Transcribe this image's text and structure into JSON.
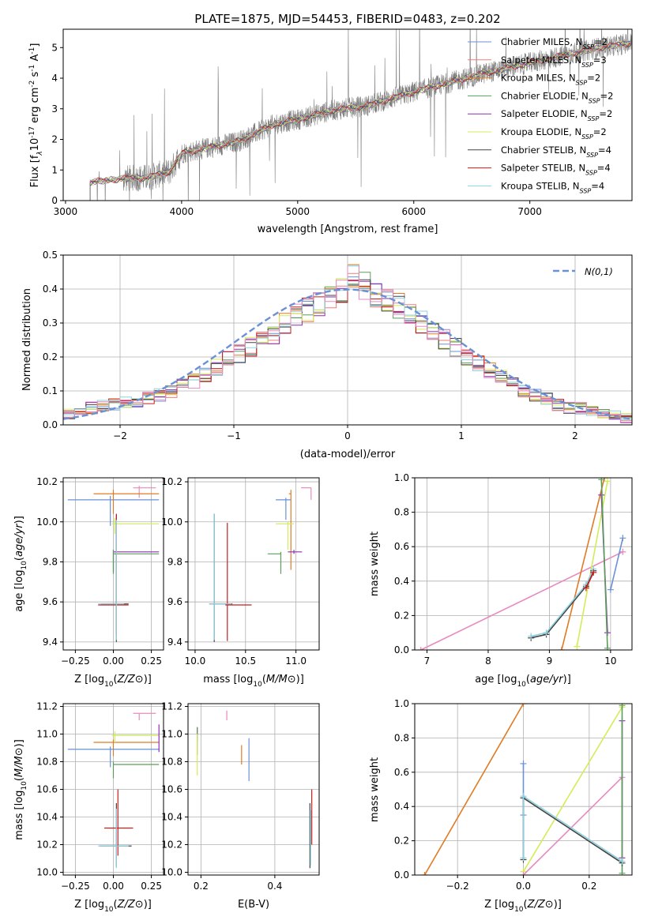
{
  "title": "PLATE=1875, MJD=54453, FIBERID=0483, z=0.202",
  "colors": {
    "chabrier_miles": "#6a91d6",
    "salpeter_miles": "#f07d7a",
    "kroupa_miles": "#e07b25",
    "chabrier_elodie": "#5a9e5a",
    "salpeter_elodie": "#8e2fb0",
    "kroupa_elodie": "#d4ec57",
    "chabrier_stelib": "#444444",
    "salpeter_stelib": "#c81d1d",
    "kroupa_stelib": "#8fd0e0",
    "pink": "#e88abf",
    "data": "#808080",
    "normal_curve": "#6a91d6"
  },
  "chart_data": [
    {
      "id": "spectrum",
      "type": "line",
      "xlabel": "wavelength [Angstrom, rest frame]",
      "ylabel_parts": [
        "Flux [f",
        "λ",
        "10",
        "-17",
        " erg cm",
        "-2",
        " s",
        "-1",
        " A",
        "-1",
        "]"
      ],
      "xlim": [
        2980,
        7880
      ],
      "ylim": [
        0,
        5.6
      ],
      "xticks": [
        3000,
        4000,
        5000,
        6000,
        7000
      ],
      "yticks": [
        0,
        1,
        2,
        3,
        4,
        5
      ],
      "series_data": {
        "name": "data",
        "x_start": 3210,
        "x_end": 7880
      },
      "model_trend": {
        "x": [
          3210,
          3500,
          3700,
          3900,
          4000,
          4200,
          4500,
          4800,
          5000,
          5300,
          5600,
          6000,
          6300,
          6600,
          7000,
          7300,
          7600,
          7880
        ],
        "y": [
          0.6,
          0.72,
          0.75,
          0.95,
          1.55,
          1.7,
          1.95,
          2.5,
          2.65,
          2.95,
          3.1,
          3.55,
          3.85,
          4.15,
          4.5,
          4.75,
          5.0,
          5.15
        ]
      },
      "legend": [
        {
          "label": "Chabrier MILES, N",
          "sub": "SSP",
          "eq": "=2",
          "color": "#6a91d6"
        },
        {
          "label": "Salpeter MILES, N",
          "sub": "SSP",
          "eq": "=3",
          "color": "#f07d7a"
        },
        {
          "label": "Kroupa MILES, N",
          "sub": "SSP",
          "eq": "=2",
          "color": "#e07b25"
        },
        {
          "label": "Chabrier ELODIE, N",
          "sub": "SSP",
          "eq": "=2",
          "color": "#5a9e5a"
        },
        {
          "label": "Salpeter ELODIE, N",
          "sub": "SSP",
          "eq": "=2",
          "color": "#8e2fb0"
        },
        {
          "label": "Kroupa ELODIE, N",
          "sub": "SSP",
          "eq": "=2",
          "color": "#d4ec57"
        },
        {
          "label": "Chabrier STELIB, N",
          "sub": "SSP",
          "eq": "=4",
          "color": "#444444"
        },
        {
          "label": "Salpeter STELIB, N",
          "sub": "SSP",
          "eq": "=4",
          "color": "#c81d1d"
        },
        {
          "label": "Kroupa STELIB, N",
          "sub": "SSP",
          "eq": "=4",
          "color": "#8fd0e0"
        }
      ],
      "legend_position": "top-right"
    },
    {
      "id": "residuals",
      "type": "histogram",
      "xlabel": "(data-model)/error",
      "ylabel": "Normed distribution",
      "xlim": [
        -2.5,
        2.5
      ],
      "ylim": [
        0,
        0.5
      ],
      "xticks": [
        -2,
        -1,
        0,
        1,
        2
      ],
      "xtick_labels": [
        "−2",
        "−1",
        "0",
        "1",
        "2"
      ],
      "yticks": [
        0.0,
        0.1,
        0.2,
        0.3,
        0.4,
        0.5
      ],
      "ytick_labels": [
        "0.0",
        "0.1",
        "0.2",
        "0.3",
        "0.4",
        "0.5"
      ],
      "bin_width": 0.1,
      "bin_start": -2.5,
      "reference_values": [
        0.03,
        0.04,
        0.05,
        0.06,
        0.06,
        0.07,
        0.06,
        0.08,
        0.09,
        0.1,
        0.12,
        0.13,
        0.15,
        0.17,
        0.19,
        0.21,
        0.23,
        0.25,
        0.27,
        0.3,
        0.32,
        0.34,
        0.36,
        0.38,
        0.4,
        0.43,
        0.41,
        0.38,
        0.37,
        0.35,
        0.32,
        0.3,
        0.28,
        0.25,
        0.23,
        0.2,
        0.18,
        0.16,
        0.14,
        0.12,
        0.1,
        0.09,
        0.08,
        0.06,
        0.05,
        0.05,
        0.04,
        0.03,
        0.03,
        0.02
      ],
      "normal_curve": {
        "label": "N(0,1)",
        "style": "dashed",
        "color": "#6a91d6"
      },
      "legend_position": "top-right"
    },
    {
      "id": "z_age",
      "type": "errorbar",
      "xlabel": "Z [log10(Z/Z⊙)]",
      "ylabel": "age  [log10(age/yr)]",
      "xlim": [
        -0.33,
        0.33
      ],
      "ylim": [
        9.36,
        10.22
      ],
      "xticks": [
        -0.25,
        0.0,
        0.25
      ],
      "xtick_labels": [
        "−0.25",
        "0.00",
        "0.25"
      ],
      "yticks": [
        9.4,
        9.6,
        9.8,
        10.0,
        10.2
      ],
      "ytick_labels": [
        "9.4",
        "9.6",
        "9.8",
        "10.0",
        "10.2"
      ],
      "points": [
        {
          "x": -0.02,
          "y": 10.11,
          "xerr": [
            0.28,
            0.32
          ],
          "yerr": [
            0.13,
            0.02
          ],
          "color": "#6a91d6"
        },
        {
          "x": 0.17,
          "y": 10.17,
          "xerr": [
            0.04,
            0.11
          ],
          "yerr": [
            0.05,
            0.01
          ],
          "color": "#e88abf"
        },
        {
          "x": 0.0,
          "y": 10.14,
          "xerr": [
            0.13,
            0.3
          ],
          "yerr": [
            0.1,
            0.02
          ],
          "color": "#e07b25"
        },
        {
          "x": 0.01,
          "y": 9.99,
          "xerr": [
            0.02,
            0.29
          ],
          "yerr": [
            0.05,
            0.03
          ],
          "color": "#d4ec57"
        },
        {
          "x": 0.0,
          "y": 9.85,
          "xerr": [
            0.0,
            0.3
          ],
          "yerr": [
            0.1,
            0.01
          ],
          "color": "#8e2fb0"
        },
        {
          "x": 0.0,
          "y": 9.84,
          "xerr": [
            0.0,
            0.3
          ],
          "yerr": [
            0.1,
            0.02
          ],
          "color": "#5a9e5a"
        },
        {
          "x": 0.02,
          "y": 9.59,
          "xerr": [
            0.1,
            0.08
          ],
          "yerr": [
            0.19,
            0.45
          ],
          "color": "#444444"
        },
        {
          "x": 0.02,
          "y": 9.585,
          "xerr": [
            0.12,
            0.08
          ],
          "yerr": [
            0.15,
            0.45
          ],
          "color": "#c81d1d"
        },
        {
          "x": 0.02,
          "y": 9.59,
          "xerr": [
            0.12,
            0.05
          ],
          "yerr": [
            0.18,
            0.42
          ],
          "color": "#8fd0e0"
        }
      ]
    },
    {
      "id": "mass_age",
      "type": "errorbar",
      "xlabel": "mass [log10(M/M⊙)]",
      "ylabel": "",
      "xlim": [
        9.93,
        11.23
      ],
      "ylim": [
        9.36,
        10.22
      ],
      "xticks": [
        10.0,
        10.5,
        11.0
      ],
      "xtick_labels": [
        "10.0",
        "10.5",
        "11.0"
      ],
      "yticks": [
        9.4,
        9.6,
        9.8,
        10.0,
        10.2
      ],
      "ytick_labels": [
        "9.4",
        "9.6",
        "9.8",
        "10.0",
        "10.2"
      ],
      "points": [
        {
          "x": 11.15,
          "y": 10.17,
          "xerr": [
            0.1,
            0.0
          ],
          "yerr": [
            0.06,
            0.0
          ],
          "color": "#e88abf"
        },
        {
          "x": 10.9,
          "y": 10.11,
          "xerr": [
            0.1,
            0.05
          ],
          "yerr": [
            0.1,
            0.01
          ],
          "color": "#6a91d6"
        },
        {
          "x": 10.95,
          "y": 10.14,
          "xerr": [
            0.02,
            0.0
          ],
          "yerr": [
            0.38,
            0.02
          ],
          "color": "#e07b25"
        },
        {
          "x": 10.92,
          "y": 9.99,
          "xerr": [
            0.12,
            0.06
          ],
          "yerr": [
            0.13,
            0.01
          ],
          "color": "#d4ec57"
        },
        {
          "x": 10.98,
          "y": 9.85,
          "xerr": [
            0.06,
            0.08
          ],
          "yerr": [
            0.01,
            0.01
          ],
          "color": "#8e2fb0"
        },
        {
          "x": 10.85,
          "y": 9.84,
          "xerr": [
            0.13,
            0.0
          ],
          "yerr": [
            0.1,
            0.01
          ],
          "color": "#5a9e5a"
        },
        {
          "x": 10.19,
          "y": 9.59,
          "xerr": [
            0.05,
            0.18
          ],
          "yerr": [
            0.19,
            0.45
          ],
          "color": "#444444"
        },
        {
          "x": 10.32,
          "y": 9.585,
          "xerr": [
            0.02,
            0.24
          ],
          "yerr": [
            0.18,
            0.41
          ],
          "color": "#c81d1d"
        },
        {
          "x": 10.19,
          "y": 9.59,
          "xerr": [
            0.05,
            0.17
          ],
          "yerr": [
            0.18,
            0.45
          ],
          "color": "#8fd0e0"
        }
      ]
    },
    {
      "id": "age_weight",
      "type": "line",
      "xlabel": "age  [log10(age/yr)]",
      "ylabel": "mass weight",
      "xlim": [
        6.8,
        10.35
      ],
      "ylim": [
        0,
        1.0
      ],
      "xticks": [
        7,
        8,
        9,
        10
      ],
      "xtick_labels": [
        "7",
        "8",
        "9",
        "10"
      ],
      "yticks": [
        0.0,
        0.2,
        0.4,
        0.6,
        0.8,
        1.0
      ],
      "ytick_labels": [
        "0.0",
        "0.2",
        "0.4",
        "0.6",
        "0.8",
        "1.0"
      ],
      "series": [
        {
          "color": "#e88abf",
          "x": [
            6.9,
            10.2
          ],
          "y": [
            0.0,
            0.57
          ]
        },
        {
          "color": "#e07b25",
          "x": [
            9.2,
            9.9
          ],
          "y": [
            0.0,
            1.0
          ]
        },
        {
          "color": "#d4ec57",
          "x": [
            9.45,
            9.95
          ],
          "y": [
            0.02,
            0.98
          ]
        },
        {
          "color": "#8e2fb0",
          "x": [
            9.85,
            9.95
          ],
          "y": [
            0.9,
            0.1
          ]
        },
        {
          "color": "#5a9e5a",
          "x": [
            9.85,
            9.95
          ],
          "y": [
            0.99,
            0.01
          ]
        },
        {
          "color": "#6a91d6",
          "x": [
            10.0,
            10.2
          ],
          "y": [
            0.35,
            0.65
          ]
        },
        {
          "color": "#444444",
          "x": [
            8.7,
            8.95,
            9.6,
            9.72
          ],
          "y": [
            0.07,
            0.09,
            0.37,
            0.46
          ]
        },
        {
          "color": "#8fd0e0",
          "x": [
            8.7,
            8.95,
            9.6,
            9.72
          ],
          "y": [
            0.08,
            0.1,
            0.38,
            0.47
          ]
        },
        {
          "color": "#c81d1d",
          "x": [
            9.6,
            9.72
          ],
          "y": [
            0.36,
            0.45
          ]
        }
      ]
    },
    {
      "id": "z_mass",
      "type": "errorbar",
      "xlabel": "Z [log10(Z/Z⊙)]",
      "ylabel": "mass [log10(M/M⊙)]",
      "xlim": [
        -0.33,
        0.33
      ],
      "ylim": [
        9.98,
        11.22
      ],
      "xticks": [
        -0.25,
        0.0,
        0.25
      ],
      "xtick_labels": [
        "−0.25",
        "0.00",
        "0.25"
      ],
      "yticks": [
        10.0,
        10.2,
        10.4,
        10.6,
        10.8,
        11.0,
        11.2
      ],
      "ytick_labels": [
        "10.0",
        "10.2",
        "10.4",
        "10.6",
        "10.8",
        "11.0",
        "11.2"
      ],
      "points": [
        {
          "x": 0.17,
          "y": 11.15,
          "xerr": [
            0.04,
            0.11
          ],
          "yerr": [
            0.05,
            0.0
          ],
          "color": "#e88abf"
        },
        {
          "x": 0.0,
          "y": 10.94,
          "xerr": [
            0.13,
            0.3
          ],
          "yerr": [
            0.1,
            0.02
          ],
          "color": "#e07b25"
        },
        {
          "x": -0.02,
          "y": 10.89,
          "xerr": [
            0.28,
            0.32
          ],
          "yerr": [
            0.13,
            0.02
          ],
          "color": "#6a91d6"
        },
        {
          "x": 0.01,
          "y": 10.99,
          "xerr": [
            0.02,
            0.29
          ],
          "yerr": [
            0.05,
            0.03
          ],
          "color": "#d4ec57"
        },
        {
          "x": 0.3,
          "y": 10.95,
          "xerr": [
            0.0,
            0.0
          ],
          "yerr": [
            0.08,
            0.12
          ],
          "color": "#8e2fb0"
        },
        {
          "x": 0.0,
          "y": 10.78,
          "xerr": [
            0.0,
            0.3
          ],
          "yerr": [
            0.1,
            0.02
          ],
          "color": "#5a9e5a"
        },
        {
          "x": 0.03,
          "y": 10.32,
          "xerr": [
            0.09,
            0.1
          ],
          "yerr": [
            0.2,
            0.28
          ],
          "color": "#c81d1d"
        },
        {
          "x": 0.02,
          "y": 10.19,
          "xerr": [
            0.11,
            0.1
          ],
          "yerr": [
            0.15,
            0.31
          ],
          "color": "#444444"
        },
        {
          "x": 0.02,
          "y": 10.19,
          "xerr": [
            0.12,
            0.08
          ],
          "yerr": [
            0.16,
            0.27
          ],
          "color": "#8fd0e0"
        }
      ]
    },
    {
      "id": "ebv_mass",
      "type": "errorbar",
      "xlabel": "E(B-V)",
      "ylabel": "",
      "xlim": [
        0.165,
        0.52
      ],
      "ylim": [
        9.98,
        11.22
      ],
      "xticks": [
        0.2,
        0.4
      ],
      "xtick_labels": [
        "0.2",
        "0.4"
      ],
      "yticks": [
        10.0,
        10.2,
        10.4,
        10.6,
        10.8,
        11.0,
        11.2
      ],
      "ytick_labels": [
        "10.0",
        "10.2",
        "10.4",
        "10.6",
        "10.8",
        "11.0",
        "11.2"
      ],
      "points": [
        {
          "x": 0.27,
          "y": 11.15,
          "xerr": [
            0.0,
            0.0
          ],
          "yerr": [
            0.05,
            0.02
          ],
          "color": "#e88abf"
        },
        {
          "x": 0.19,
          "y": 11.0,
          "xerr": [
            0.0,
            0.0
          ],
          "yerr": [
            0.05,
            0.05
          ],
          "color": "#8e2fb0"
        },
        {
          "x": 0.19,
          "y": 10.95,
          "xerr": [
            0.0,
            0.0
          ],
          "yerr": [
            0.1,
            0.1
          ],
          "color": "#5a9e5a"
        },
        {
          "x": 0.19,
          "y": 10.9,
          "xerr": [
            0.0,
            0.0
          ],
          "yerr": [
            0.2,
            0.1
          ],
          "color": "#d4ec57"
        },
        {
          "x": 0.31,
          "y": 10.85,
          "xerr": [
            0.0,
            0.0
          ],
          "yerr": [
            0.07,
            0.07
          ],
          "color": "#e07b25"
        },
        {
          "x": 0.33,
          "y": 10.82,
          "xerr": [
            0.0,
            0.0
          ],
          "yerr": [
            0.16,
            0.15
          ],
          "color": "#6a91d6"
        },
        {
          "x": 0.5,
          "y": 10.4,
          "xerr": [
            0.0,
            0.0
          ],
          "yerr": [
            0.2,
            0.2
          ],
          "color": "#c81d1d"
        },
        {
          "x": 0.495,
          "y": 10.25,
          "xerr": [
            0.0,
            0.0
          ],
          "yerr": [
            0.22,
            0.25
          ],
          "color": "#444444"
        },
        {
          "x": 0.497,
          "y": 10.25,
          "xerr": [
            0.0,
            0.0
          ],
          "yerr": [
            0.2,
            0.2
          ],
          "color": "#8fd0e0"
        }
      ]
    },
    {
      "id": "z_weight",
      "type": "line",
      "xlabel": "Z [log10(Z/Z⊙)]",
      "ylabel": "mass weight",
      "xlim": [
        -0.33,
        0.33
      ],
      "ylim": [
        0,
        1.0
      ],
      "xticks": [
        -0.2,
        0.0,
        0.2
      ],
      "xtick_labels": [
        "−0.2",
        "0.0",
        "0.2"
      ],
      "yticks": [
        0.0,
        0.2,
        0.4,
        0.6,
        0.8,
        1.0
      ],
      "ytick_labels": [
        "0.0",
        "0.2",
        "0.4",
        "0.6",
        "0.8",
        "1.0"
      ],
      "series": [
        {
          "color": "#e07b25",
          "x": [
            -0.3,
            0.0
          ],
          "y": [
            0.0,
            1.0
          ]
        },
        {
          "color": "#d4ec57",
          "x": [
            0.0,
            0.3
          ],
          "y": [
            0.02,
            0.98
          ]
        },
        {
          "color": "#e88abf",
          "x": [
            0.0,
            0.3
          ],
          "y": [
            0.0,
            0.57
          ]
        },
        {
          "color": "#8e2fb0",
          "x": [
            0.3,
            0.3
          ],
          "y": [
            0.1,
            0.9
          ]
        },
        {
          "color": "#5a9e5a",
          "x": [
            0.3,
            0.3
          ],
          "y": [
            0.01,
            0.99
          ]
        },
        {
          "color": "#6a91d6",
          "x": [
            0.0,
            0.0
          ],
          "y": [
            0.35,
            0.65
          ]
        },
        {
          "color": "#444444",
          "x": [
            0.0,
            0.0,
            0.3
          ],
          "y": [
            0.09,
            0.45,
            0.07
          ]
        },
        {
          "color": "#8fd0e0",
          "x": [
            0.0,
            0.0,
            0.3
          ],
          "y": [
            0.1,
            0.46,
            0.08
          ]
        }
      ]
    }
  ]
}
